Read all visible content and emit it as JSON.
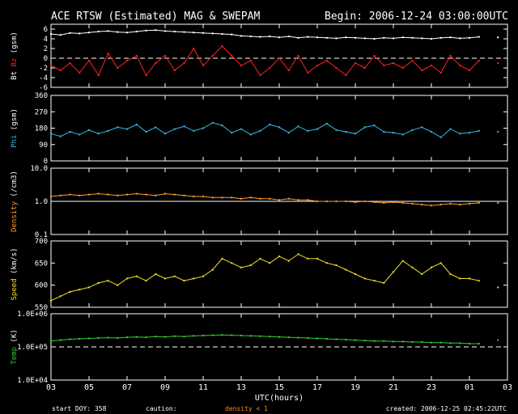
{
  "header": {
    "title": "ACE RTSW (Estimated) MAG & SWEPAM",
    "begin": "Begin: 2006-12-24 03:00:00UTC"
  },
  "footer": {
    "start_doy": "start DOY: 358",
    "caution_label": "caution:",
    "caution_text": "density < 1",
    "created": "created: 2006-12-25 02:45:22UTC"
  },
  "colors": {
    "bt": "#ffffff",
    "bz": "#ff2020",
    "phi": "#2fb8e6",
    "density": "#ff9a30",
    "speed": "#f0e020",
    "temp": "#30d030",
    "axis": "#ffffff",
    "caution": "#ff8c1a"
  },
  "chart_data": {
    "type": "line",
    "xlabel": "UTC(hours)",
    "x_ticks": [
      "03",
      "05",
      "07",
      "09",
      "11",
      "13",
      "15",
      "17",
      "19",
      "21",
      "23",
      "01",
      "03"
    ],
    "x_range_hours": [
      0,
      24
    ],
    "panels": [
      {
        "id": "mag",
        "ylabel_parts": [
          {
            "text": "Bt",
            "color": "#ffffff"
          },
          {
            "text": " Bz",
            "color": "#ff2020"
          },
          {
            "text": " (gsm)",
            "color": "#ffffff"
          }
        ],
        "ylim": [
          -6,
          7
        ],
        "yticks": [
          -6,
          -4,
          -2,
          0,
          2,
          4,
          6
        ],
        "ytick_labels": [
          "-6",
          "-4",
          "-2",
          "0",
          "2",
          "4",
          "6"
        ],
        "dashed_ref": 0,
        "series": [
          {
            "name": "Bt",
            "color": "#ffffff",
            "x": [
              0,
              0.5,
              1,
              1.5,
              2,
              2.5,
              3,
              3.5,
              4,
              4.5,
              5,
              5.5,
              6,
              6.5,
              7,
              7.5,
              8,
              8.5,
              9,
              9.5,
              10,
              10.5,
              11,
              11.5,
              12,
              12.5,
              13,
              13.5,
              14,
              14.5,
              15,
              15.5,
              16,
              16.5,
              17,
              17.5,
              18,
              18.5,
              19,
              19.5,
              20,
              20.5,
              21,
              21.5,
              22,
              22.5,
              23,
              23.5
            ],
            "y": [
              5.0,
              4.8,
              5.2,
              5.1,
              5.3,
              5.5,
              5.6,
              5.4,
              5.3,
              5.5,
              5.7,
              5.8,
              5.6,
              5.5,
              5.4,
              5.3,
              5.2,
              5.1,
              5.0,
              4.9,
              4.6,
              4.5,
              4.4,
              4.5,
              4.3,
              4.5,
              4.2,
              4.4,
              4.3,
              4.2,
              4.1,
              4.3,
              4.2,
              4.1,
              4.0,
              4.2,
              4.1,
              4.3,
              4.2,
              4.1,
              4.0,
              4.2,
              4.3,
              4.1,
              4.2,
              4.4,
              null,
              4.3
            ]
          },
          {
            "name": "Bz",
            "color": "#ff2020",
            "x": [
              0,
              0.5,
              1,
              1.5,
              2,
              2.5,
              3,
              3.5,
              4,
              4.5,
              5,
              5.5,
              6,
              6.5,
              7,
              7.5,
              8,
              8.5,
              9,
              9.5,
              10,
              10.5,
              11,
              11.5,
              12,
              12.5,
              13,
              13.5,
              14,
              14.5,
              15,
              15.5,
              16,
              16.5,
              17,
              17.5,
              18,
              18.5,
              19,
              19.5,
              20,
              20.5,
              21,
              21.5,
              22,
              22.5,
              23,
              23.5
            ],
            "y": [
              -1.5,
              -2.5,
              -1.0,
              -3.0,
              -0.5,
              -3.5,
              1.0,
              -2.0,
              -0.5,
              0.5,
              -3.5,
              -1.0,
              0.5,
              -2.5,
              -1.0,
              2.0,
              -1.5,
              0.5,
              2.5,
              0.5,
              -1.5,
              -0.5,
              -3.5,
              -2.0,
              0.0,
              -2.5,
              0.5,
              -3.0,
              -1.5,
              -0.5,
              -2.0,
              -3.5,
              -1.0,
              -2.0,
              0.5,
              -1.5,
              -1.0,
              -2.0,
              -0.5,
              -2.5,
              -1.5,
              -3.0,
              0.5,
              -1.5,
              -2.5,
              -0.5,
              null,
              -1.0
            ]
          }
        ]
      },
      {
        "id": "phi",
        "ylabel_parts": [
          {
            "text": "Phi",
            "color": "#2fb8e6"
          },
          {
            "text": " (gsm)",
            "color": "#ffffff"
          }
        ],
        "ylim": [
          0,
          360
        ],
        "yticks": [
          0,
          90,
          180,
          270,
          360
        ],
        "ytick_labels": [
          "0",
          "90",
          "180",
          "270",
          "360"
        ],
        "series": [
          {
            "name": "Phi",
            "color": "#2fb8e6",
            "x": [
              0,
              0.5,
              1,
              1.5,
              2,
              2.5,
              3,
              3.5,
              4,
              4.5,
              5,
              5.5,
              6,
              6.5,
              7,
              7.5,
              8,
              8.5,
              9,
              9.5,
              10,
              10.5,
              11,
              11.5,
              12,
              12.5,
              13,
              13.5,
              14,
              14.5,
              15,
              15.5,
              16,
              16.5,
              17,
              17.5,
              18,
              18.5,
              19,
              19.5,
              20,
              20.5,
              21,
              21.5,
              22,
              22.5,
              23,
              23.5
            ],
            "y": [
              150,
              135,
              160,
              145,
              170,
              150,
              165,
              185,
              175,
              200,
              160,
              185,
              150,
              175,
              190,
              165,
              180,
              210,
              195,
              155,
              175,
              145,
              165,
              200,
              185,
              155,
              190,
              165,
              175,
              205,
              170,
              160,
              150,
              185,
              195,
              160,
              155,
              145,
              170,
              185,
              160,
              130,
              175,
              150,
              155,
              165,
              null,
              160
            ]
          }
        ]
      },
      {
        "id": "density",
        "ylabel_parts": [
          {
            "text": "Density",
            "color": "#ff9a30"
          },
          {
            "text": " (/cm3)",
            "color": "#ffffff"
          }
        ],
        "log": true,
        "ylim": [
          0.1,
          10
        ],
        "yticks": [
          0.1,
          1,
          10
        ],
        "ytick_labels": [
          "0.1",
          "1.0",
          "10.0"
        ],
        "solid_ref": 1,
        "series": [
          {
            "name": "Density",
            "color": "#ff9a30",
            "x": [
              0,
              0.5,
              1,
              1.5,
              2,
              2.5,
              3,
              3.5,
              4,
              4.5,
              5,
              5.5,
              6,
              6.5,
              7,
              7.5,
              8,
              8.5,
              9,
              9.5,
              10,
              10.5,
              11,
              11.5,
              12,
              12.5,
              13,
              13.5,
              14,
              14.5,
              15,
              15.5,
              16,
              16.5,
              17,
              17.5,
              18,
              18.5,
              19,
              19.5,
              20,
              20.5,
              21,
              21.5,
              22,
              22.5,
              23,
              23.5
            ],
            "y": [
              1.4,
              1.5,
              1.6,
              1.5,
              1.6,
              1.7,
              1.6,
              1.5,
              1.6,
              1.7,
              1.6,
              1.5,
              1.7,
              1.6,
              1.5,
              1.4,
              1.4,
              1.3,
              1.3,
              1.3,
              1.2,
              1.3,
              1.2,
              1.2,
              1.1,
              1.2,
              1.1,
              1.1,
              1.0,
              1.0,
              1.0,
              1.0,
              0.95,
              1.0,
              0.95,
              0.9,
              0.95,
              0.9,
              0.85,
              0.8,
              0.75,
              0.8,
              0.85,
              0.8,
              0.85,
              0.9,
              null,
              0.9
            ]
          }
        ]
      },
      {
        "id": "speed",
        "ylabel_parts": [
          {
            "text": "Speed",
            "color": "#f0e020"
          },
          {
            "text": " (km/s)",
            "color": "#ffffff"
          }
        ],
        "ylim": [
          550,
          700
        ],
        "yticks": [
          550,
          600,
          650,
          700
        ],
        "ytick_labels": [
          "550",
          "600",
          "650",
          "700"
        ],
        "series": [
          {
            "name": "Speed",
            "color": "#f0e020",
            "x": [
              0,
              0.5,
              1,
              1.5,
              2,
              2.5,
              3,
              3.5,
              4,
              4.5,
              5,
              5.5,
              6,
              6.5,
              7,
              7.5,
              8,
              8.5,
              9,
              9.5,
              10,
              10.5,
              11,
              11.5,
              12,
              12.5,
              13,
              13.5,
              14,
              14.5,
              15,
              15.5,
              16,
              16.5,
              17,
              17.5,
              18,
              18.5,
              19,
              19.5,
              20,
              20.5,
              21,
              21.5,
              22,
              22.5,
              23,
              23.5
            ],
            "y": [
              565,
              575,
              585,
              590,
              595,
              605,
              610,
              600,
              615,
              620,
              610,
              625,
              615,
              620,
              610,
              615,
              620,
              635,
              660,
              650,
              640,
              645,
              660,
              650,
              665,
              655,
              670,
              660,
              660,
              650,
              645,
              635,
              625,
              615,
              610,
              605,
              630,
              655,
              640,
              625,
              640,
              650,
              625,
              615,
              615,
              610,
              null,
              595
            ]
          }
        ]
      },
      {
        "id": "temp",
        "ylabel_parts": [
          {
            "text": "Temp",
            "color": "#30d030"
          },
          {
            "text": " (K)",
            "color": "#ffffff"
          }
        ],
        "log": true,
        "ylim": [
          10000,
          1000000
        ],
        "yticks": [
          10000,
          100000,
          1000000
        ],
        "ytick_labels": [
          "1.0E+04",
          "1.0E+05",
          "1.0E+06"
        ],
        "dashed_ref": 100000,
        "series": [
          {
            "name": "Temp",
            "color": "#30d030",
            "x": [
              0,
              0.5,
              1,
              1.5,
              2,
              2.5,
              3,
              3.5,
              4,
              4.5,
              5,
              5.5,
              6,
              6.5,
              7,
              7.5,
              8,
              8.5,
              9,
              9.5,
              10,
              10.5,
              11,
              11.5,
              12,
              12.5,
              13,
              13.5,
              14,
              14.5,
              15,
              15.5,
              16,
              16.5,
              17,
              17.5,
              18,
              18.5,
              19,
              19.5,
              20,
              20.5,
              21,
              21.5,
              22,
              22.5,
              23,
              23.5
            ],
            "y": [
              150000,
              160000,
              170000,
              175000,
              180000,
              185000,
              190000,
              185000,
              195000,
              200000,
              195000,
              205000,
              200000,
              210000,
              205000,
              215000,
              220000,
              225000,
              230000,
              225000,
              220000,
              215000,
              210000,
              205000,
              200000,
              195000,
              190000,
              185000,
              180000,
              175000,
              170000,
              165000,
              160000,
              155000,
              150000,
              150000,
              145000,
              145000,
              140000,
              140000,
              135000,
              135000,
              130000,
              130000,
              125000,
              125000,
              null,
              160000
            ]
          }
        ]
      }
    ]
  }
}
